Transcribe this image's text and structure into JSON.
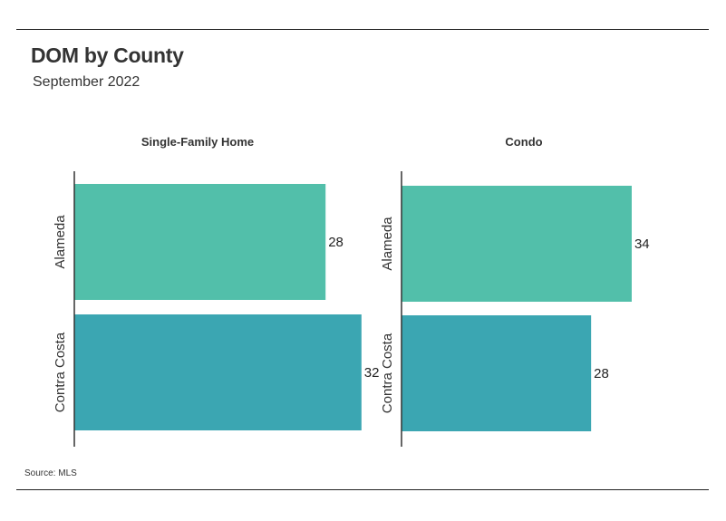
{
  "title": "DOM by County",
  "subtitle": "September 2022",
  "source": "Source:  MLS",
  "colors": {
    "Alameda": "#52bfaa",
    "Contra Costa": "#3ba6b2"
  },
  "chart_data": [
    {
      "type": "bar",
      "orientation": "horizontal",
      "title": "Single-Family Home",
      "categories": [
        "Alameda",
        "Contra Costa"
      ],
      "values": [
        28,
        32
      ]
    },
    {
      "type": "bar",
      "orientation": "horizontal",
      "title": "Condo",
      "categories": [
        "Alameda",
        "Contra Costa"
      ],
      "values": [
        34,
        28
      ]
    }
  ]
}
